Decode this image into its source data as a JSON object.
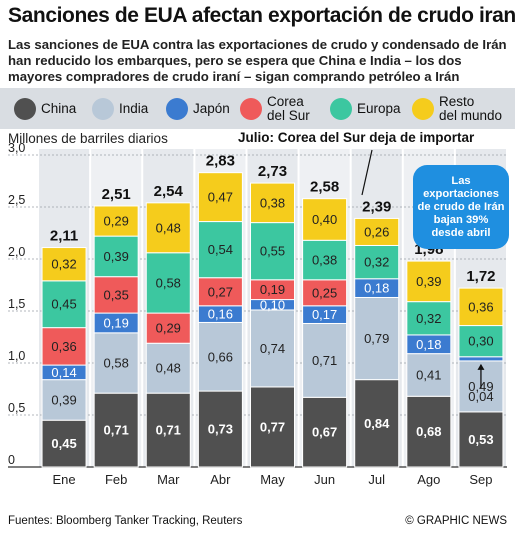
{
  "header": {
    "title": "Sanciones de EUA afectan exportación de crudo iraní",
    "subtitle": "Las sanciones de EUA contra las exportaciones de crudo y condensado de Irán han reducido los embarques, pero se espera que China e India – los dos mayores compradores de crudo iraní – sigan comprando petróleo a Irán"
  },
  "annotation": "Julio: Corea del Sur deja de importar",
  "callout": "Las exportaciones de crudo de Irán bajan 39% desde abril",
  "footer": {
    "source": "Fuentes: Bloomberg Tanker Tracking, Reuters",
    "credit": "© GRAPHIC NEWS"
  },
  "colors": {
    "China": "#505050",
    "India": "#b8c8d8",
    "Japón": "#3b7bd0",
    "Corea del Sur": "#ef5a5a",
    "Europa": "#3cc7a0",
    "Resto del mundo": "#f5cc1c",
    "panel": "#e3e6ea",
    "callout": "#1f8fe0"
  },
  "chart_data": {
    "type": "bar",
    "stacked": true,
    "ylabel": "Millones de barriles diarios",
    "ylim": [
      0,
      3.0
    ],
    "yticks": [
      "0",
      "0,5",
      "1,0",
      "1,5",
      "2,0",
      "2,5",
      "3,0"
    ],
    "categories": [
      "Ene",
      "Feb",
      "Mar",
      "Abr",
      "May",
      "Jun",
      "Jul",
      "Ago",
      "Sep"
    ],
    "totals": [
      "2,11",
      "2,51",
      "2,54",
      "2,83",
      "2,73",
      "2,58",
      "2,39",
      "1,98",
      "1,72"
    ],
    "series": [
      {
        "name": "China",
        "values": [
          0.45,
          0.71,
          0.71,
          0.73,
          0.77,
          0.67,
          0.84,
          0.68,
          0.53
        ],
        "labels": [
          "0,45",
          "0,71",
          "0,71",
          "0,73",
          "0,77",
          "0,67",
          "0,84",
          "0,68",
          "0,53"
        ]
      },
      {
        "name": "India",
        "values": [
          0.39,
          0.58,
          0.48,
          0.66,
          0.74,
          0.71,
          0.79,
          0.41,
          0.49
        ],
        "labels": [
          "0,39",
          "0,58",
          "0,48",
          "0,66",
          "0,74",
          "0,71",
          "0,79",
          "0,41",
          "0,49"
        ]
      },
      {
        "name": "Japón",
        "values": [
          0.14,
          0.19,
          0.0,
          0.16,
          0.1,
          0.17,
          0.18,
          0.18,
          0.04
        ],
        "labels": [
          "0,14",
          "0,19",
          "",
          "0,16",
          "0,10",
          "0,17",
          "0,18",
          "0,18",
          "0,04"
        ]
      },
      {
        "name": "Corea del Sur",
        "values": [
          0.36,
          0.35,
          0.29,
          0.27,
          0.19,
          0.25,
          0.0,
          0.0,
          0.0
        ],
        "labels": [
          "0,36",
          "0,35",
          "0,29",
          "0,27",
          "0,19",
          "0,25",
          "",
          "",
          ""
        ]
      },
      {
        "name": "Europa",
        "values": [
          0.45,
          0.39,
          0.58,
          0.54,
          0.55,
          0.38,
          0.32,
          0.32,
          0.3
        ],
        "labels": [
          "0,45",
          "0,39",
          "0,58",
          "0,54",
          "0,55",
          "0,38",
          "0,32",
          "0,32",
          "0,30"
        ]
      },
      {
        "name": "Resto del mundo",
        "values": [
          0.32,
          0.29,
          0.48,
          0.47,
          0.38,
          0.4,
          0.26,
          0.39,
          0.36
        ],
        "labels": [
          "0,32",
          "0,29",
          "0,48",
          "0,47",
          "0,38",
          "0,40",
          "0,26",
          "0,39",
          "0,36"
        ]
      }
    ],
    "legend": [
      {
        "name": "China",
        "label": "China"
      },
      {
        "name": "India",
        "label": "India"
      },
      {
        "name": "Japón",
        "label": "Japón"
      },
      {
        "name": "Corea del Sur",
        "label": "Corea\ndel Sur"
      },
      {
        "name": "Europa",
        "label": "Europa"
      },
      {
        "name": "Resto del mundo",
        "label": "Resto\ndel mundo"
      }
    ],
    "legend_position": "top",
    "grid": true
  }
}
